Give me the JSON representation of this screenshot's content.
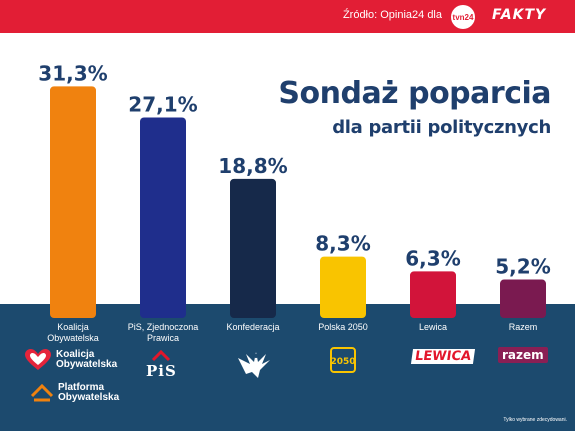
{
  "header": {
    "source": "Źródło: Opinia24 dla",
    "tvn_logo": "tvn24",
    "fakty_logo": "FAKTY"
  },
  "title": {
    "main": "Sondaż poparcia",
    "sub": "dla partii politycznych"
  },
  "chart_data": {
    "type": "bar",
    "categories": [
      "Koalicja Obywatelska",
      "PiS, Zjednoczona Prawica",
      "Konfederacja",
      "Polska 2050",
      "Lewica",
      "Razem"
    ],
    "values": [
      31.3,
      27.1,
      18.8,
      8.3,
      6.3,
      5.2
    ],
    "value_labels": [
      "31,3%",
      "27,1%",
      "18,8%",
      "8,3%",
      "6,3%",
      "5,2%"
    ],
    "category_labels": [
      [
        "Koalicja",
        "Obywatelska"
      ],
      [
        "PiS, Zjednoczona",
        "Prawica"
      ],
      [
        "Konfederacja"
      ],
      [
        "Polska 2050"
      ],
      [
        "Lewica"
      ],
      [
        "Razem"
      ]
    ],
    "colors": [
      "#f0820f",
      "#1f2e8c",
      "#16294a",
      "#f9c400",
      "#d2143a",
      "#7a1a50"
    ],
    "unit": "%",
    "grid": false,
    "legend": "none"
  },
  "logos": {
    "ko_line1": "Koalicja",
    "ko_line2": "Obywatelska",
    "po_line1": "Platforma",
    "po_line2": "Obywatelska",
    "pis": "PiS",
    "p2050": "2050",
    "lewica": "LEWICA",
    "razem": "razem"
  },
  "footnote": "Tylko wybrane zdecydowani."
}
